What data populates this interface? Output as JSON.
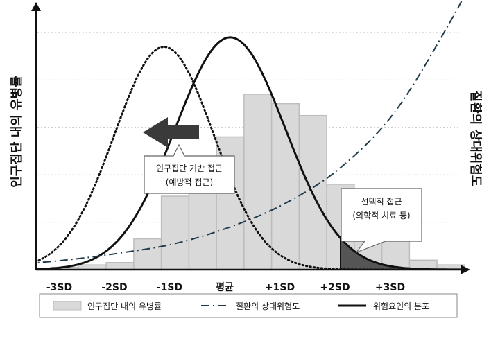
{
  "chart_data": {
    "type": "bar",
    "categories": [
      "-3SD",
      "-2SD",
      "-1SD",
      "평균",
      "+1SD",
      "+2SD",
      "+3SD"
    ],
    "y_left_label": "인구집단 내의 유병률",
    "y_right_label": "질환의 상대위험도",
    "grid": true,
    "bar_positions_sd": [
      -3.5,
      -3.0,
      -2.5,
      -2.0,
      -1.5,
      -1.0,
      -0.5,
      0.0,
      0.5,
      1.0,
      1.5,
      2.0,
      2.5,
      3.0,
      3.5,
      4.0
    ],
    "bar_values": [
      0.0,
      0.01,
      0.02,
      0.03,
      0.13,
      0.31,
      0.47,
      0.56,
      0.74,
      0.7,
      0.65,
      0.36,
      0.25,
      0.13,
      0.04,
      0.02
    ],
    "population_curve": {
      "mean_sd": -1.2,
      "sd": 0.9,
      "peak": 0.94
    },
    "risk_factor_curve": {
      "mean_sd": 0.0,
      "sd": 1.0,
      "peak": 0.98
    },
    "relative_risk_curve": {
      "x": [
        -4.0,
        -3.0,
        -2.0,
        -1.0,
        0.0,
        1.0,
        2.0,
        3.0,
        4.0,
        4.4
      ],
      "y": [
        0.02,
        0.04,
        0.07,
        0.11,
        0.18,
        0.28,
        0.43,
        0.67,
        1.05,
        1.23
      ]
    },
    "population_approach": {
      "line1": "인구집단 기반 접근",
      "line2": "(예방적 접근)"
    },
    "selective_approach": {
      "line1": "선택적 접근",
      "line2": "(의학적 치료 등)"
    },
    "legend": {
      "placement": "bottom",
      "items": [
        {
          "key": "bars",
          "label": "인구집단 내의 유병률"
        },
        {
          "key": "risk",
          "label": "질환의 상대위험도"
        },
        {
          "key": "dist",
          "label": "위험요인의 분포"
        }
      ]
    }
  },
  "colors": {
    "bar_fill": "#d9d9d9",
    "bar_stroke": "#bdbdbd",
    "grid": "#bbbbbb",
    "shade": "#555555",
    "arrow": "#3a3a3a",
    "risk_line": "#1d3a4a"
  }
}
